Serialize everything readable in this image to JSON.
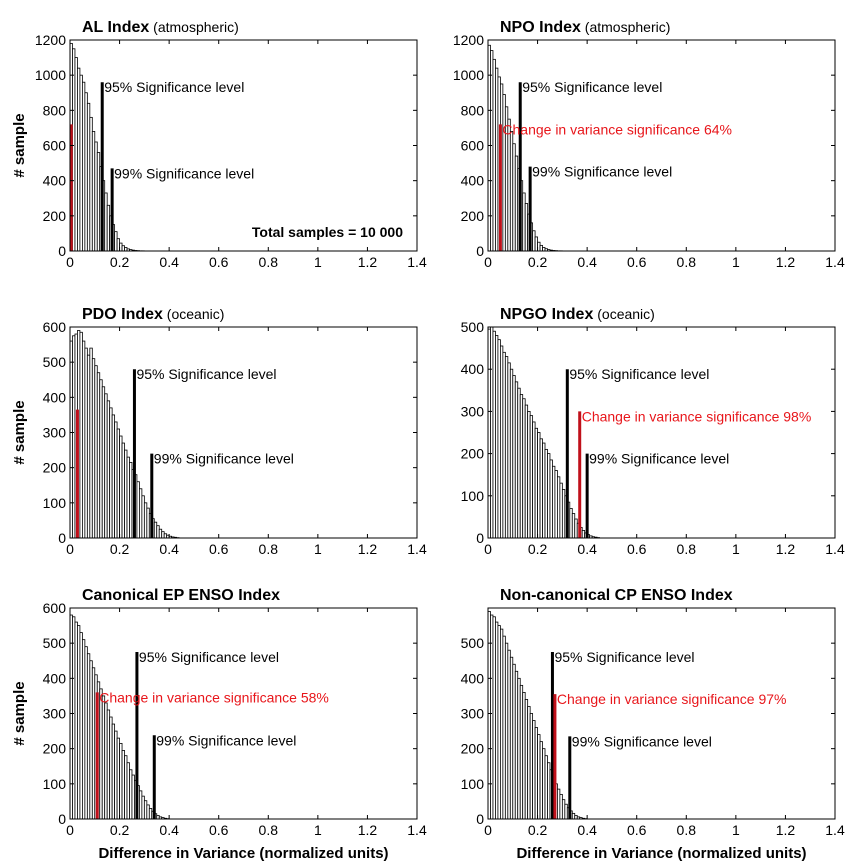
{
  "figure": {
    "colors": {
      "bar_fill": "#ffffff",
      "bar_stroke": "#000000",
      "significance": "#000000",
      "observed": "#e8161b",
      "observed_bar": "#c0101a"
    },
    "ylabel": "# sample",
    "xlabel": "Difference in Variance (normalized units)",
    "total_label": "Total samples = 10 000"
  },
  "chart_data": [
    {
      "type": "bar",
      "title": "AL Index",
      "subtitle": "(atmospheric)",
      "xlim": [
        0,
        1.4
      ],
      "ylim": [
        0,
        1200
      ],
      "xticks": [
        "0",
        "0.2",
        "0.4",
        "0.6",
        "0.8",
        "1",
        "1.2",
        "1.4"
      ],
      "yticks": [
        "0",
        "200",
        "400",
        "600",
        "800",
        "1000",
        "1200"
      ],
      "bin_width": 0.01,
      "values": [
        1180,
        1150,
        1100,
        1040,
        1000,
        960,
        900,
        840,
        760,
        680,
        620,
        560,
        480,
        400,
        330,
        260,
        200,
        150,
        110,
        70,
        45,
        30,
        20,
        12,
        8,
        5,
        3,
        2,
        1,
        1
      ],
      "lines": [
        {
          "x": 0.13,
          "y": 960,
          "label": "95% Significance level",
          "kind": "sig"
        },
        {
          "x": 0.17,
          "y": 470,
          "label": "99% Significance level",
          "kind": "sig"
        },
        {
          "x": 0.005,
          "y": 720,
          "label": "",
          "kind": "obs"
        }
      ],
      "ylabel": true,
      "xlabel": false,
      "total": true
    },
    {
      "type": "bar",
      "title": "NPO Index",
      "subtitle": "(atmospheric)",
      "xlim": [
        0,
        1.4
      ],
      "ylim": [
        0,
        1200
      ],
      "xticks": [
        "0",
        "0.2",
        "0.4",
        "0.6",
        "0.8",
        "1",
        "1.2",
        "1.4"
      ],
      "yticks": [
        "0",
        "200",
        "400",
        "600",
        "800",
        "1000",
        "1200"
      ],
      "bin_width": 0.01,
      "values": [
        1170,
        1140,
        1090,
        1040,
        990,
        950,
        890,
        820,
        750,
        680,
        610,
        540,
        470,
        400,
        330,
        270,
        210,
        160,
        115,
        80,
        50,
        32,
        20,
        13,
        8,
        5,
        3,
        2,
        1,
        1
      ],
      "lines": [
        {
          "x": 0.13,
          "y": 960,
          "label": "95% Significance level",
          "kind": "sig"
        },
        {
          "x": 0.17,
          "y": 480,
          "label": "99% Significance level",
          "kind": "sig"
        },
        {
          "x": 0.05,
          "y": 720,
          "label": "Change in variance significance 64%",
          "kind": "obs"
        }
      ],
      "ylabel": false,
      "xlabel": false,
      "total": false
    },
    {
      "type": "bar",
      "title": "PDO Index",
      "subtitle": "(oceanic)",
      "xlim": [
        0,
        1.4
      ],
      "ylim": [
        0,
        600
      ],
      "xticks": [
        "0",
        "0.2",
        "0.4",
        "0.6",
        "0.8",
        "1",
        "1.2",
        "1.4"
      ],
      "yticks": [
        "0",
        "100",
        "200",
        "300",
        "400",
        "500",
        "600"
      ],
      "bin_width": 0.01,
      "values": [
        560,
        575,
        580,
        590,
        585,
        560,
        540,
        520,
        540,
        510,
        490,
        470,
        450,
        430,
        410,
        390,
        370,
        350,
        330,
        310,
        290,
        270,
        250,
        230,
        215,
        195,
        180,
        160,
        140,
        120,
        100,
        85,
        70,
        55,
        45,
        35,
        25,
        18,
        12,
        8,
        5,
        3,
        2,
        1
      ],
      "lines": [
        {
          "x": 0.26,
          "y": 480,
          "label": "95% Significance level",
          "kind": "sig"
        },
        {
          "x": 0.33,
          "y": 240,
          "label": "99% Significance level",
          "kind": "sig"
        },
        {
          "x": 0.03,
          "y": 365,
          "label": "",
          "kind": "obs"
        }
      ],
      "ylabel": true,
      "xlabel": false,
      "total": false
    },
    {
      "type": "bar",
      "title": "NPGO Index",
      "subtitle": "(oceanic)",
      "xlim": [
        0,
        1.4
      ],
      "ylim": [
        0,
        500
      ],
      "xticks": [
        "0",
        "0.2",
        "0.4",
        "0.6",
        "0.8",
        "1",
        "1.2",
        "1.4"
      ],
      "yticks": [
        "0",
        "100",
        "200",
        "300",
        "400",
        "500"
      ],
      "bin_width": 0.01,
      "values": [
        495,
        500,
        490,
        480,
        470,
        455,
        440,
        430,
        415,
        400,
        385,
        370,
        355,
        340,
        330,
        315,
        300,
        290,
        275,
        260,
        250,
        235,
        225,
        210,
        200,
        185,
        170,
        160,
        145,
        130,
        115,
        100,
        85,
        70,
        58,
        45,
        35,
        25,
        18,
        12,
        8,
        5,
        3,
        2,
        1
      ],
      "lines": [
        {
          "x": 0.32,
          "y": 400,
          "label": "95% Significance level",
          "kind": "sig"
        },
        {
          "x": 0.4,
          "y": 200,
          "label": "99% Significance level",
          "kind": "sig"
        },
        {
          "x": 0.37,
          "y": 300,
          "label": "Change in variance significance 98%",
          "kind": "obs"
        }
      ],
      "ylabel": false,
      "xlabel": false,
      "total": false
    },
    {
      "type": "bar",
      "title": "Canonical EP ENSO Index",
      "subtitle": "",
      "xlim": [
        0,
        1.4
      ],
      "ylim": [
        0,
        600
      ],
      "xticks": [
        "0",
        "0.2",
        "0.4",
        "0.6",
        "0.8",
        "1",
        "1.2",
        "1.4"
      ],
      "yticks": [
        "0",
        "100",
        "200",
        "300",
        "400",
        "500",
        "600"
      ],
      "bin_width": 0.01,
      "values": [
        580,
        575,
        560,
        550,
        530,
        510,
        490,
        470,
        450,
        430,
        410,
        390,
        370,
        350,
        330,
        310,
        290,
        270,
        250,
        230,
        215,
        195,
        180,
        160,
        140,
        125,
        110,
        95,
        80,
        65,
        52,
        40,
        30,
        22,
        15,
        10,
        6,
        4,
        2,
        1
      ],
      "lines": [
        {
          "x": 0.27,
          "y": 475,
          "label": "95% Significance level",
          "kind": "sig"
        },
        {
          "x": 0.34,
          "y": 238,
          "label": "99% Significance level",
          "kind": "sig"
        },
        {
          "x": 0.11,
          "y": 360,
          "label": "Change in variance significance 58%",
          "kind": "obs"
        }
      ],
      "ylabel": true,
      "xlabel": true,
      "total": false
    },
    {
      "type": "bar",
      "title": "Non-canonical CP ENSO Index",
      "subtitle": "",
      "xlim": [
        0,
        1.4
      ],
      "ylim": [
        0,
        600
      ],
      "xticks": [
        "0",
        "0.2",
        "0.4",
        "0.6",
        "0.8",
        "1",
        "1.2",
        "1.4"
      ],
      "yticks": [
        "0",
        "100",
        "200",
        "300",
        "400",
        "500"
      ],
      "bin_width": 0.01,
      "values": [
        590,
        580,
        575,
        560,
        550,
        540,
        520,
        500,
        480,
        460,
        440,
        420,
        400,
        380,
        360,
        340,
        320,
        300,
        280,
        260,
        240,
        220,
        200,
        180,
        160,
        140,
        120,
        100,
        85,
        70,
        55,
        42,
        32,
        23,
        16,
        10,
        6,
        4,
        2,
        1
      ],
      "lines": [
        {
          "x": 0.26,
          "y": 475,
          "label": "95% Significance level",
          "kind": "sig"
        },
        {
          "x": 0.33,
          "y": 235,
          "label": "99% Significance level",
          "kind": "sig"
        },
        {
          "x": 0.27,
          "y": 355,
          "label": "Change in variance significance 97%",
          "kind": "obs"
        }
      ],
      "ylabel": false,
      "xlabel": true,
      "total": false
    }
  ]
}
